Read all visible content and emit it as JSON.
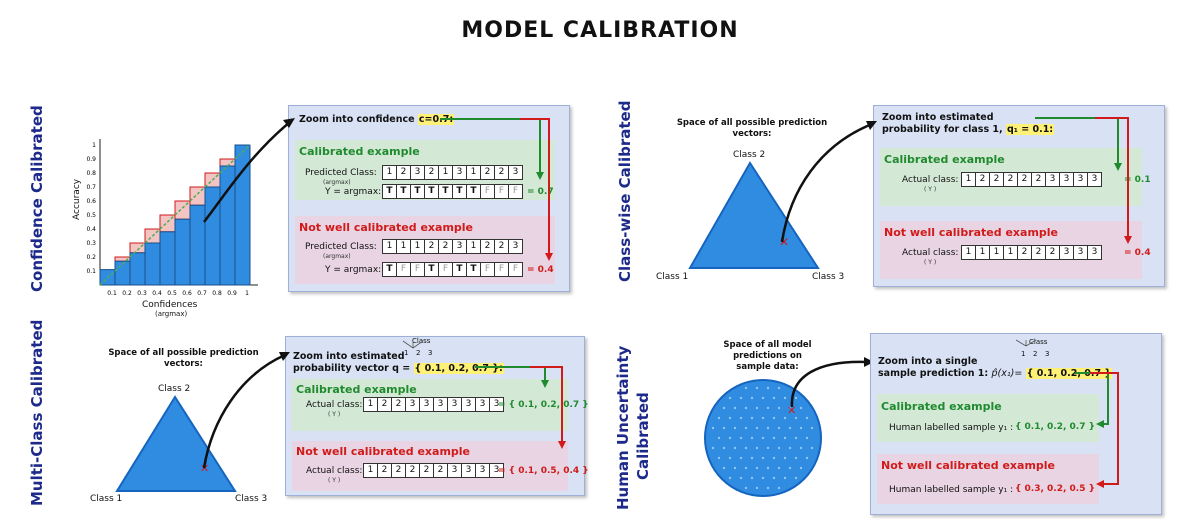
{
  "title": "MODEL CALIBRATION",
  "sections": {
    "confidence": "Confidence Calibrated",
    "classwise": "Class-wise Calibrated",
    "multiclass": "Multi-Class Calibrated",
    "human": "Human Uncertainty Calibrated",
    "human_line1": "Human Uncertainty",
    "human_line2": "Calibrated"
  },
  "chart_data": {
    "type": "bar",
    "xlabel": "Confidences",
    "xlabel_sub": "(argmax)",
    "ylabel": "Accuracy",
    "categories": [
      "0.1",
      "0.2",
      "0.3",
      "0.4",
      "0.5",
      "0.6",
      "0.7",
      "0.8",
      "0.9",
      "1"
    ],
    "values": [
      0.11,
      0.17,
      0.23,
      0.3,
      0.38,
      0.47,
      0.57,
      0.7,
      0.85,
      1.0
    ],
    "ideal": [
      0.1,
      0.2,
      0.3,
      0.4,
      0.5,
      0.6,
      0.7,
      0.8,
      0.9,
      1.0
    ],
    "yticks": [
      "0.1",
      "0.2",
      "0.3",
      "0.4",
      "0.5",
      "0.6",
      "0.7",
      "0.8",
      "0.9",
      "1"
    ],
    "ylim": [
      0,
      1
    ],
    "bar_color": "#2f8ce0",
    "gap_color": "#d11a1a",
    "ideal_color": "#4caf50"
  },
  "panel1": {
    "zoom_prefix": "Zoom into confidence",
    "zoom_value": "c=0.7:",
    "calibrated_title": "Calibrated example",
    "pred_label": "Predicted Class:",
    "pred_sub": "(argmax)",
    "cal_pred": [
      "1",
      "2",
      "3",
      "2",
      "1",
      "3",
      "1",
      "2",
      "2",
      "3"
    ],
    "y_label": "Y = argmax:",
    "cal_y": [
      "T",
      "T",
      "T",
      "T",
      "T",
      "T",
      "T",
      "F",
      "F",
      "F"
    ],
    "cal_result": "= 0.7",
    "not_title": "Not well calibrated example",
    "not_pred": [
      "1",
      "1",
      "1",
      "2",
      "2",
      "3",
      "1",
      "2",
      "2",
      "3"
    ],
    "not_y": [
      "T",
      "F",
      "F",
      "T",
      "F",
      "T",
      "T",
      "F",
      "F",
      "F"
    ],
    "not_result": "= 0.4"
  },
  "panel2": {
    "space_label": "Space of all possible prediction vectors:",
    "class2": "Class 2",
    "class1": "Class 1",
    "class3": "Class 3",
    "zoom_line1": "Zoom into estimated",
    "zoom_line2": "probability for class 1,",
    "zoom_value": "q₁ = 0.1:",
    "calibrated_title": "Calibrated example",
    "actual_label": "Actual class:",
    "actual_sub": "( Y )",
    "cal_cells": [
      "1",
      "2",
      "2",
      "2",
      "2",
      "2",
      "3",
      "3",
      "3",
      "3"
    ],
    "cal_result": "= 0.1",
    "not_title": "Not well calibrated example",
    "not_cells": [
      "1",
      "1",
      "1",
      "1",
      "2",
      "2",
      "2",
      "3",
      "3",
      "3"
    ],
    "not_result": "= 0.4"
  },
  "panel3": {
    "space_label": "Space of all possible prediction vectors:",
    "class2": "Class 2",
    "class1": "Class 1",
    "class3": "Class 3",
    "class_tree_title": "Class",
    "class_tree_nums": [
      "1",
      "2",
      "3"
    ],
    "zoom_line1": "Zoom into estimated",
    "zoom_line2": "probability vector q =",
    "zoom_value": "{ 0.1, 0.2, 0.7 }:",
    "calibrated_title": "Calibrated example",
    "actual_label": "Actual class:",
    "actual_sub": "( Y )",
    "cal_cells": [
      "1",
      "2",
      "2",
      "3",
      "3",
      "3",
      "3",
      "3",
      "3",
      "3"
    ],
    "cal_result": "= { 0.1, 0.2, 0.7 }",
    "not_title": "Not well calibrated example",
    "not_cells": [
      "1",
      "2",
      "2",
      "2",
      "2",
      "2",
      "3",
      "3",
      "3",
      "3"
    ],
    "not_result": "= { 0.1, 0.5, 0.4 }"
  },
  "panel4": {
    "space_label": "Space of all model predictions on sample data:",
    "class_tree_title": "Class",
    "class_tree_nums": [
      "1",
      "2",
      "3"
    ],
    "zoom_line1": "Zoom into a single",
    "zoom_line2": "sample prediction 1:",
    "zoom_formula": "p̂(x₁)=",
    "zoom_value": "{ 0.1, 0.2, 0.7 }",
    "calibrated_title": "Calibrated example",
    "human_label": "Human labelled sample y₁ :",
    "cal_result": "{ 0.1, 0.2, 0.7 }",
    "not_title": "Not well calibrated example",
    "not_result": "{ 0.3, 0.2, 0.5 }"
  }
}
